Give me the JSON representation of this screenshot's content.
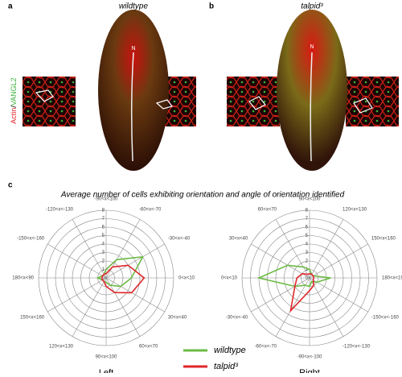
{
  "figure": {
    "panels": {
      "a": {
        "label": "a",
        "title": "wildtype",
        "marker": "N"
      },
      "b": {
        "label": "b",
        "title": "talpid³",
        "marker": "N"
      },
      "c": {
        "label": "c"
      }
    },
    "side_label": {
      "actin": "Actin",
      "sep": "/",
      "vangl2": "VANGL2"
    }
  },
  "chart_data": [
    {
      "type": "radar",
      "title": "Average number of cells exhibiting orientation and angle of orientation identified",
      "xlabel": "Left",
      "categories": [
        "-90<x<100",
        "-60<x<-70",
        "-30<x<-40",
        "0<x<10",
        "30<x<40",
        "60<x<70",
        "90<x<100",
        "120<x<130",
        "150<x<160",
        "180<x<90",
        "-150<x<-160",
        "-120<x<-130"
      ],
      "rlim": [
        0,
        8
      ],
      "rticks": [
        0,
        1,
        2,
        3,
        4,
        5,
        6,
        7,
        8
      ],
      "series": [
        {
          "name": "wildtype",
          "color": "#6dbb45",
          "values": [
            1,
            2.5,
            5,
            3,
            2,
            1,
            0.5,
            0.5,
            0.5,
            1,
            0.5,
            0.5
          ]
        },
        {
          "name": "talpid³",
          "color": "#e0262a",
          "values": [
            0.5,
            1.5,
            3,
            4.5,
            3.5,
            2,
            1,
            0.5,
            0.5,
            0.5,
            0.5,
            0.5
          ]
        }
      ]
    },
    {
      "type": "radar",
      "xlabel": "Right",
      "categories": [
        "90<x<100",
        "120<x<130",
        "150<x<160",
        "180<x<190",
        "-150<x<-160",
        "-120<x<-130",
        "-90<x<-100",
        "-60<x<-70",
        "-30<x<-40",
        "0<x<10",
        "30<x<40",
        "60<x<70"
      ],
      "rlim": [
        0,
        8
      ],
      "rticks": [
        0,
        1,
        2,
        3,
        4,
        5,
        6,
        7,
        8
      ],
      "series": [
        {
          "color": "#6dbb45",
          "values": [
            1,
            0.5,
            0.5,
            2.5,
            1,
            0.5,
            1,
            1,
            2,
            6,
            3,
            1.5
          ]
        },
        {
          "color": "#e0262a",
          "values": [
            0.5,
            0.5,
            0.5,
            0.5,
            0.5,
            1,
            1.5,
            4.5,
            2,
            1.5,
            1,
            0.5
          ]
        }
      ]
    }
  ]
}
